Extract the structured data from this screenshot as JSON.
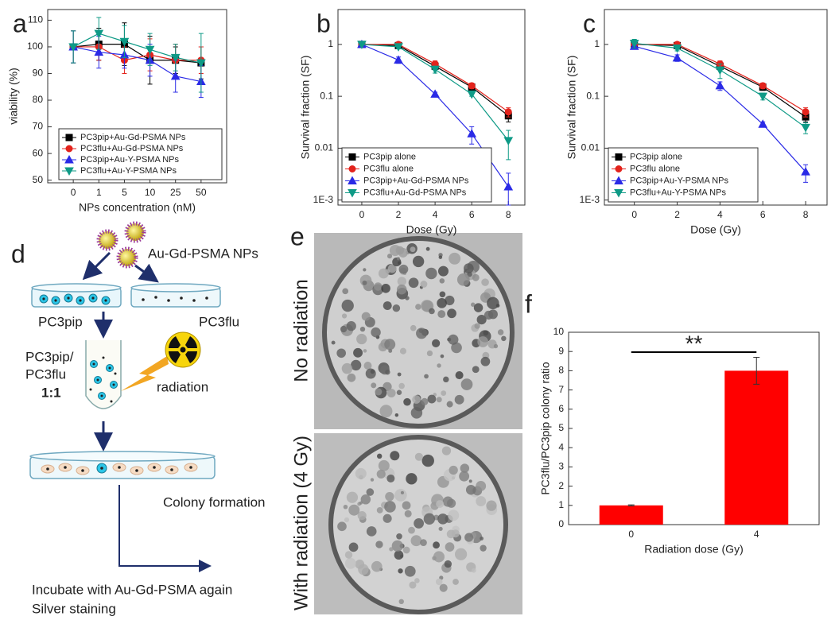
{
  "chart_data": [
    {
      "type": "line",
      "panel": "a",
      "xlabel": "NPs concentration (nM)",
      "ylabel": "viability (%)",
      "categories": [
        "0",
        "1",
        "5",
        "10",
        "25",
        "50"
      ],
      "ylim": [
        49,
        114
      ],
      "yticks": [
        50,
        60,
        70,
        80,
        90,
        100,
        110
      ],
      "legend": "lower left",
      "series": [
        {
          "name": "PC3pip+Au-Gd-PSMA NPs",
          "color": "#000000",
          "marker": "square",
          "values": [
            100,
            101,
            101,
            95,
            95,
            94
          ],
          "errors": [
            6,
            6,
            8,
            9,
            5,
            6
          ]
        },
        {
          "name": "PC3flu+Au-Gd-PSMA NPs",
          "color": "#e3231c",
          "marker": "circle",
          "values": [
            100,
            100,
            95,
            97,
            95,
            95
          ],
          "errors": [
            6,
            5,
            5,
            6,
            6,
            5
          ]
        },
        {
          "name": "PC3pip+Au-Y-PSMA NPs",
          "color": "#2a2ae6",
          "marker": "triangle",
          "values": [
            100,
            98,
            97,
            95,
            89,
            87
          ],
          "errors": [
            6,
            6,
            5,
            6,
            6,
            6
          ]
        },
        {
          "name": "PC3flu+Au-Y-PSMA NPs",
          "color": "#0e9a86",
          "marker": "triangle-down",
          "values": [
            100,
            105,
            102,
            99,
            96,
            94
          ],
          "errors": [
            6,
            6,
            6,
            6,
            5,
            11
          ]
        }
      ]
    },
    {
      "type": "line",
      "panel": "b",
      "xlabel": "Dose (Gy)",
      "ylabel": "Survival fraction (SF)",
      "log_y": true,
      "x": [
        0,
        2,
        4,
        6,
        8
      ],
      "xlim": [
        -1.3,
        8.9
      ],
      "xticks": [
        0,
        2,
        4,
        6,
        8
      ],
      "ylim": [
        0.0008,
        4.7
      ],
      "yticks": [
        {
          "value": 0.001,
          "label": "1E-3"
        },
        0.01,
        0.1,
        1
      ],
      "legend": "lower left",
      "series": [
        {
          "name": "PC3pip alone",
          "color": "#000000",
          "marker": "square",
          "values": [
            1,
            0.95,
            0.38,
            0.15,
            0.042
          ],
          "errors": [
            0.03,
            0.1,
            0.05,
            0.02,
            0.01
          ]
        },
        {
          "name": "PC3flu alone",
          "color": "#e3231c",
          "marker": "circle",
          "values": [
            1,
            1.0,
            0.42,
            0.16,
            0.05
          ],
          "errors": [
            0.03,
            0.1,
            0.06,
            0.02,
            0.01
          ]
        },
        {
          "name": "PC3pip+Au-Gd-PSMA NPs",
          "color": "#2a2ae6",
          "marker": "triangle",
          "values": [
            1,
            0.5,
            0.11,
            0.019,
            0.0018
          ],
          "errors": [
            0.03,
            0.07,
            0.01,
            0.007,
            0.0015
          ]
        },
        {
          "name": "PC3flu+Au-Gd-PSMA NPs",
          "color": "#0e9a86",
          "marker": "triangle-down",
          "values": [
            1,
            0.9,
            0.33,
            0.11,
            0.014
          ],
          "errors": [
            0.03,
            0.08,
            0.05,
            0.01,
            0.008
          ]
        }
      ]
    },
    {
      "type": "line",
      "panel": "c",
      "xlabel": "Dose (Gy)",
      "ylabel": "Survival fraction (SF)",
      "log_y": true,
      "x": [
        0,
        2,
        4,
        6,
        8
      ],
      "xlim": [
        -1.4,
        9
      ],
      "xticks": [
        0,
        2,
        4,
        6,
        8
      ],
      "ylim": [
        0.0008,
        4.7
      ],
      "yticks": [
        {
          "value": 0.001,
          "label": "1E-3"
        },
        0.01,
        0.1,
        1
      ],
      "legend": "lower left",
      "series": [
        {
          "name": "PC3pip alone",
          "color": "#000000",
          "marker": "square",
          "values": [
            1,
            0.95,
            0.38,
            0.15,
            0.04
          ],
          "errors": [
            0.03,
            0.1,
            0.05,
            0.02,
            0.008
          ]
        },
        {
          "name": "PC3flu alone",
          "color": "#e3231c",
          "marker": "circle",
          "values": [
            1,
            1.0,
            0.42,
            0.16,
            0.05
          ],
          "errors": [
            0.03,
            0.1,
            0.06,
            0.02,
            0.01
          ]
        },
        {
          "name": "PC3pip+Au-Y-PSMA NPs",
          "color": "#2a2ae6",
          "marker": "triangle",
          "values": [
            0.92,
            0.55,
            0.16,
            0.029,
            0.0035
          ],
          "errors": [
            0.08,
            0.08,
            0.03,
            0.003,
            0.0013
          ]
        },
        {
          "name": "PC3flu+Au-Y-PSMA NPs",
          "color": "#0e9a86",
          "marker": "triangle-down",
          "values": [
            1.05,
            0.85,
            0.32,
            0.1,
            0.025
          ],
          "errors": [
            0.2,
            0.1,
            0.1,
            0.015,
            0.006
          ]
        }
      ]
    },
    {
      "type": "bar",
      "panel": "f",
      "xlabel": "Radiation dose (Gy)",
      "ylabel": "PC3flu/PC3pip colony ratio",
      "categories": [
        "0",
        "4"
      ],
      "values": [
        1,
        8
      ],
      "errors": [
        0.03,
        0.7
      ],
      "color": "#ff0000",
      "ylim": [
        0,
        10
      ],
      "yticks": [
        0,
        1,
        2,
        3,
        4,
        5,
        6,
        7,
        8,
        9,
        10
      ],
      "annotation": "**"
    }
  ],
  "diagram": {
    "panel": "d",
    "nanoparticles": "Au-Gd-PSMA NPs",
    "dish_left": "PC3pip",
    "dish_right": "PC3flu",
    "mix_line1": "PC3pip/",
    "mix_line2": "PC3flu",
    "ratio": "1:1",
    "radiation": "radiation",
    "colony": "Colony formation",
    "final_line1": "Incubate with Au-Gd-PSMA again",
    "final_line2": "Silver staining"
  },
  "photos": {
    "panel": "e",
    "top_label": "No radiation",
    "bottom_label": "With radiation (4 Gy)"
  }
}
